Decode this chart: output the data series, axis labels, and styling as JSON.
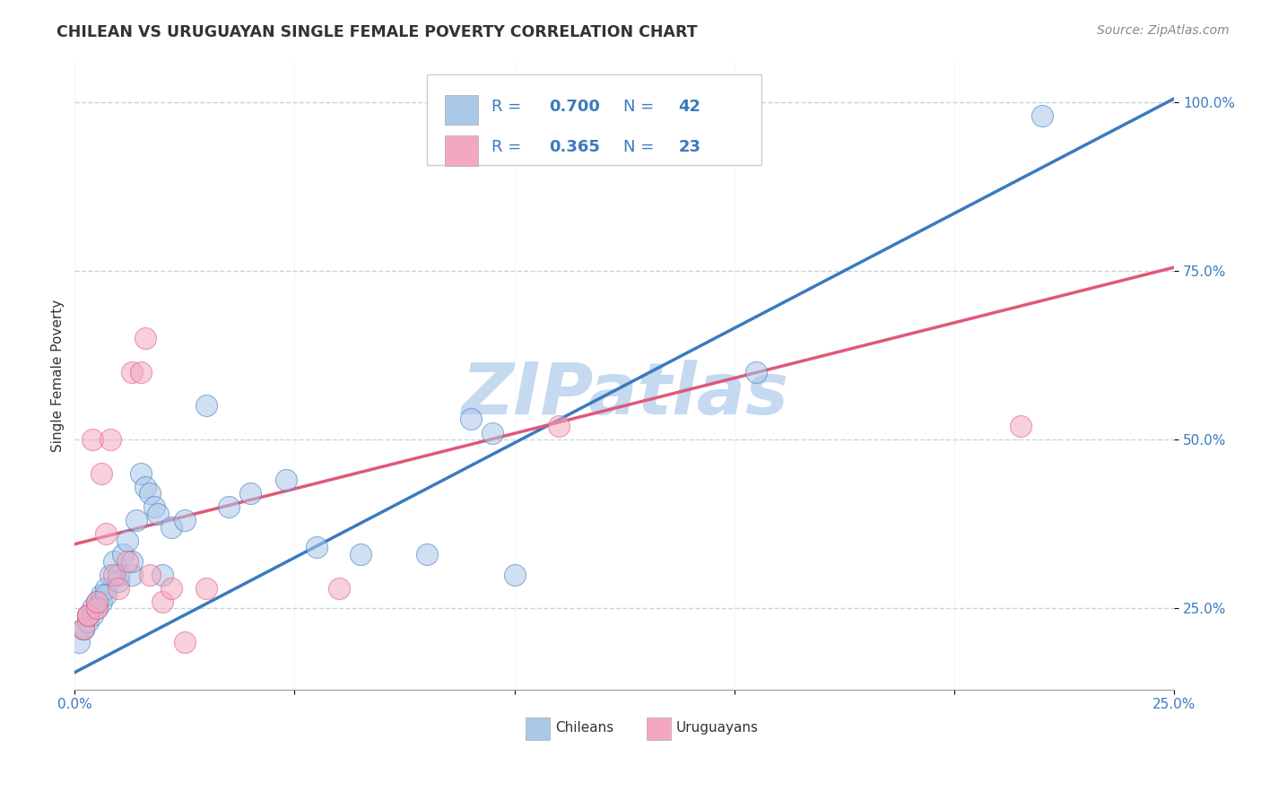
{
  "title": "CHILEAN VS URUGUAYAN SINGLE FEMALE POVERTY CORRELATION CHART",
  "source": "Source: ZipAtlas.com",
  "ylabel": "Single Female Poverty",
  "legend_label1": "Chileans",
  "legend_label2": "Uruguayans",
  "R1": 0.7,
  "N1": 42,
  "R2": 0.365,
  "N2": 23,
  "color1": "#aac8e8",
  "color2": "#f4a8c0",
  "line_color1": "#3a7abf",
  "line_color2": "#e05878",
  "text_color_blue": "#3a7abf",
  "watermark": "ZIPatlas",
  "watermark_color": "#c5d9f0",
  "xlim": [
    0.0,
    0.25
  ],
  "ylim": [
    0.13,
    1.06
  ],
  "yticks": [
    0.25,
    0.5,
    0.75,
    1.0
  ],
  "ytick_labels": [
    "25.0%",
    "50.0%",
    "75.0%",
    "100.0%"
  ],
  "line1_x0": 0.0,
  "line1_y0": 0.155,
  "line1_x1": 0.25,
  "line1_y1": 1.005,
  "line2_x0": 0.0,
  "line2_y0": 0.345,
  "line2_x1": 0.25,
  "line2_y1": 0.755,
  "chileans_x": [
    0.001,
    0.002,
    0.002,
    0.003,
    0.003,
    0.004,
    0.004,
    0.005,
    0.005,
    0.006,
    0.006,
    0.007,
    0.007,
    0.008,
    0.009,
    0.01,
    0.01,
    0.011,
    0.012,
    0.013,
    0.013,
    0.014,
    0.015,
    0.016,
    0.017,
    0.018,
    0.019,
    0.02,
    0.022,
    0.025,
    0.03,
    0.035,
    0.04,
    0.048,
    0.055,
    0.065,
    0.08,
    0.09,
    0.095,
    0.1,
    0.155,
    0.22
  ],
  "chileans_y": [
    0.2,
    0.22,
    0.22,
    0.24,
    0.23,
    0.25,
    0.24,
    0.26,
    0.25,
    0.27,
    0.26,
    0.28,
    0.27,
    0.3,
    0.32,
    0.29,
    0.3,
    0.33,
    0.35,
    0.3,
    0.32,
    0.38,
    0.45,
    0.43,
    0.42,
    0.4,
    0.39,
    0.3,
    0.37,
    0.38,
    0.55,
    0.4,
    0.42,
    0.44,
    0.34,
    0.33,
    0.33,
    0.53,
    0.51,
    0.3,
    0.6,
    0.98
  ],
  "uruguayans_x": [
    0.002,
    0.003,
    0.003,
    0.004,
    0.005,
    0.005,
    0.006,
    0.007,
    0.008,
    0.009,
    0.01,
    0.012,
    0.013,
    0.015,
    0.016,
    0.017,
    0.02,
    0.022,
    0.025,
    0.03,
    0.06,
    0.11,
    0.215
  ],
  "uruguayans_y": [
    0.22,
    0.24,
    0.24,
    0.5,
    0.25,
    0.26,
    0.45,
    0.36,
    0.5,
    0.3,
    0.28,
    0.32,
    0.6,
    0.6,
    0.65,
    0.3,
    0.26,
    0.28,
    0.2,
    0.28,
    0.28,
    0.52,
    0.52
  ]
}
